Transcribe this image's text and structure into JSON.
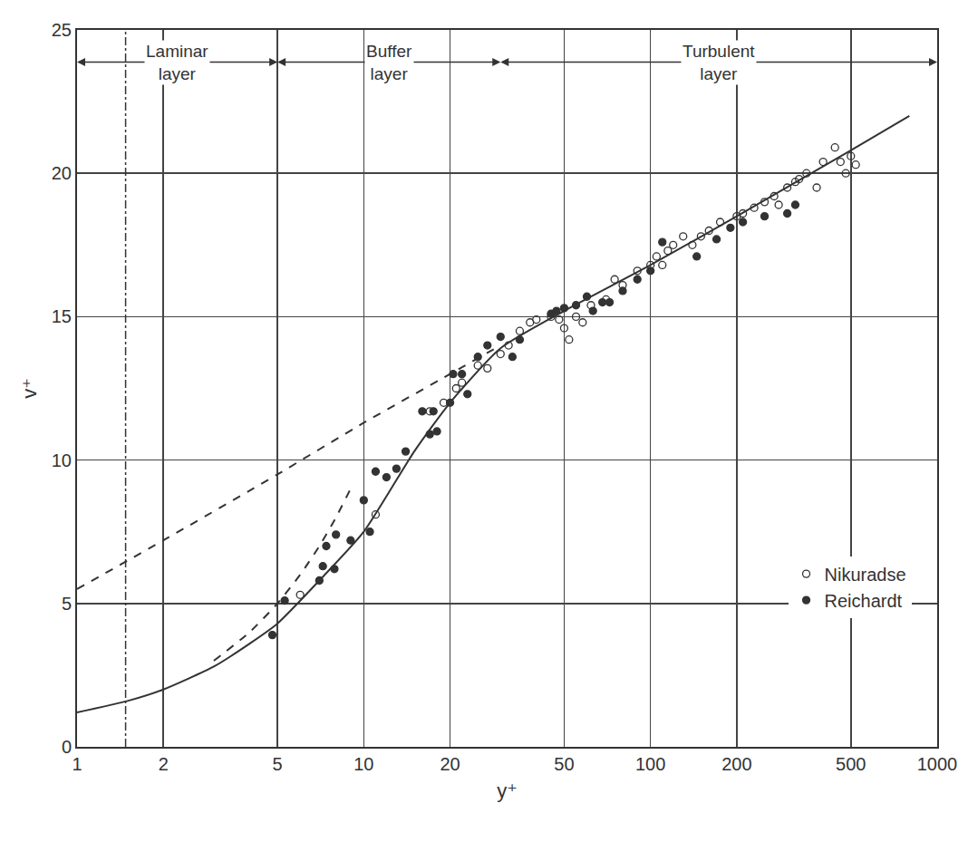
{
  "chart_data": {
    "type": "scatter",
    "x_label": "y⁺",
    "y_label": "v⁺",
    "log": "x",
    "grid": true,
    "legend": "lower right",
    "xlim": [
      1,
      1000
    ],
    "ylim": [
      0,
      25
    ],
    "xticks": [
      1,
      2,
      5,
      10,
      20,
      50,
      100,
      200,
      500,
      1000
    ],
    "yticks": [
      0,
      5,
      10,
      15,
      20,
      25
    ],
    "regions": [
      {
        "label": "Laminar\nlayer",
        "from": 1,
        "to": 5
      },
      {
        "label": "Buffer\nlayer",
        "from": 5,
        "to": 30
      },
      {
        "label": "Turbulent\nlayer",
        "from": 30,
        "to": 1000
      }
    ],
    "series": [
      {
        "type": "line",
        "line_style": "solid",
        "color": "#333333",
        "x": [
          1,
          1.5,
          2,
          3,
          4,
          5,
          7,
          10,
          15,
          20,
          30,
          50,
          100,
          200,
          500,
          800
        ],
        "values": [
          1.2,
          1.6,
          2.0,
          2.8,
          3.6,
          4.3,
          5.8,
          7.5,
          10.3,
          12.0,
          13.9,
          15.2,
          16.8,
          18.5,
          20.8,
          22.0
        ]
      },
      {
        "type": "line",
        "line_style": "dash",
        "color": "#333333",
        "x": [
          3,
          4,
          5,
          6,
          7,
          8,
          9
        ],
        "values": [
          3,
          4,
          5,
          6,
          7,
          8,
          9
        ]
      },
      {
        "type": "line",
        "line_style": "dash",
        "color": "#333333",
        "x": [
          1,
          2,
          5,
          10,
          20,
          30
        ],
        "values": [
          5.5,
          7.2,
          9.5,
          11.3,
          13.0,
          14.0
        ]
      },
      {
        "name": "Nikuradse",
        "type": "scatter",
        "marker": "circle-open",
        "color": "#333333",
        "x": [
          6,
          11,
          17,
          19,
          21,
          22,
          25,
          27,
          30,
          32,
          35,
          38,
          40,
          45,
          48,
          50,
          52,
          55,
          58,
          62,
          70,
          75,
          80,
          90,
          100,
          105,
          110,
          115,
          120,
          130,
          140,
          150,
          160,
          175,
          200,
          210,
          230,
          250,
          270,
          280,
          300,
          320,
          330,
          350,
          380,
          400,
          440,
          460,
          480,
          500,
          520
        ],
        "values": [
          5.3,
          8.1,
          11.7,
          12.0,
          12.5,
          12.7,
          13.3,
          13.2,
          13.7,
          14.0,
          14.5,
          14.8,
          14.9,
          15.0,
          14.9,
          14.6,
          14.2,
          15.0,
          14.8,
          15.4,
          15.6,
          16.3,
          16.1,
          16.6,
          16.8,
          17.1,
          16.8,
          17.3,
          17.5,
          17.8,
          17.5,
          17.8,
          18.0,
          18.3,
          18.5,
          18.6,
          18.8,
          19.0,
          19.2,
          18.9,
          19.5,
          19.7,
          19.8,
          20.0,
          19.5,
          20.4,
          20.9,
          20.4,
          20.0,
          20.6,
          20.3
        ]
      },
      {
        "name": "Reichardt",
        "type": "scatter",
        "marker": "circle",
        "color": "#333333",
        "x": [
          4.8,
          5.3,
          7,
          7.2,
          7.4,
          7.9,
          8,
          9,
          10,
          10.5,
          11,
          12,
          13,
          14,
          16,
          17,
          17.5,
          18,
          20,
          20.5,
          22,
          23,
          25,
          27,
          30,
          33,
          35,
          45,
          47,
          50,
          55,
          60,
          63,
          68,
          72,
          80,
          90,
          100,
          110,
          145,
          170,
          190,
          210,
          250,
          300,
          320
        ],
        "values": [
          3.9,
          5.1,
          5.8,
          6.3,
          7.0,
          6.2,
          7.4,
          7.2,
          8.6,
          7.5,
          9.6,
          9.4,
          9.7,
          10.3,
          11.7,
          10.9,
          11.7,
          11.0,
          12.0,
          13.0,
          13.0,
          12.3,
          13.6,
          14.0,
          14.3,
          13.6,
          14.2,
          15.1,
          15.2,
          15.3,
          15.4,
          15.7,
          15.2,
          15.5,
          15.5,
          15.9,
          16.3,
          16.6,
          17.6,
          17.1,
          17.7,
          18.1,
          18.3,
          18.5,
          18.6,
          18.9
        ]
      }
    ]
  }
}
